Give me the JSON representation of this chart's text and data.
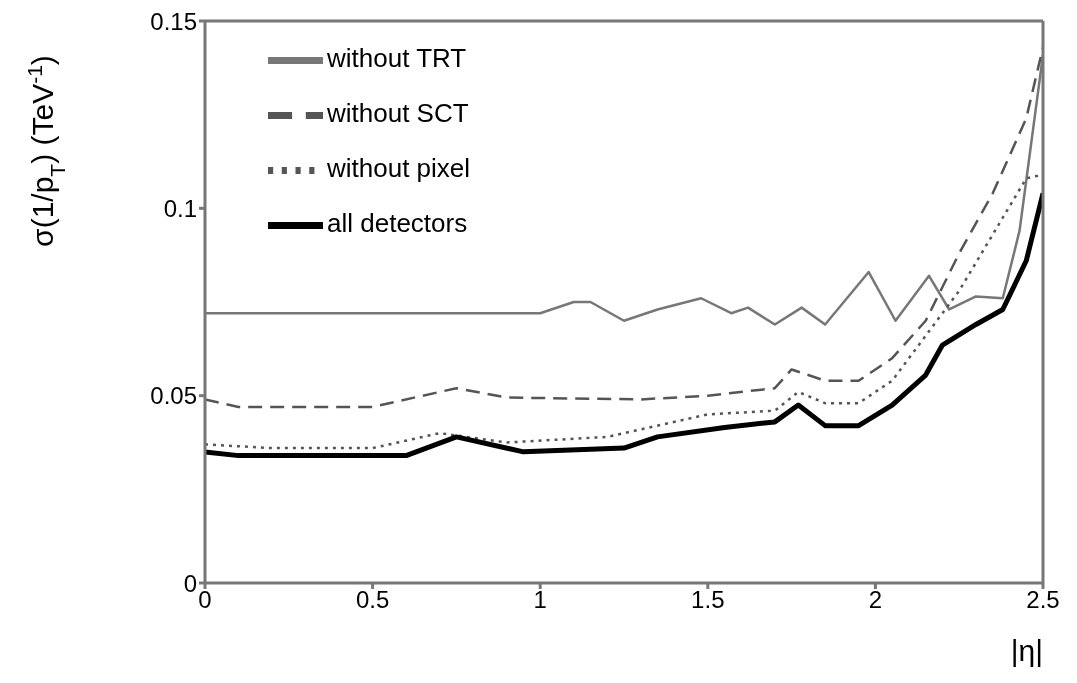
{
  "chart_data": {
    "type": "line",
    "xlabel": "|η|",
    "ylabel": "σ(1/p$_{T}$) (TeV$^{-1}$)",
    "xlim": [
      0,
      2.5
    ],
    "xticks": [
      0,
      0.5,
      1,
      1.5,
      2,
      2.5
    ],
    "ylim": [
      0,
      0.15
    ],
    "yticks": [
      0,
      0.05,
      0.1,
      0.15
    ],
    "grid": false,
    "legend": "top left",
    "marker": "none",
    "series": [
      {
        "name": "without TRT",
        "color": "#777777",
        "line_style": "solid",
        "x": [
          0,
          1.0,
          1.1,
          1.15,
          1.25,
          1.35,
          1.48,
          1.57,
          1.62,
          1.7,
          1.78,
          1.85,
          1.98,
          2.06,
          2.16,
          2.22,
          2.3,
          2.38,
          2.43,
          2.5
        ],
        "values": [
          0.072,
          0.072,
          0.075,
          0.075,
          0.07,
          0.073,
          0.076,
          0.072,
          0.0735,
          0.069,
          0.0735,
          0.069,
          0.083,
          0.07,
          0.082,
          0.073,
          0.0765,
          0.076,
          0.094,
          0.141
        ]
      },
      {
        "name": "without SCT",
        "color": "#555555",
        "line_style": "dashed",
        "x": [
          0,
          0.1,
          0.5,
          0.75,
          0.9,
          1.3,
          1.5,
          1.7,
          1.75,
          1.85,
          1.95,
          2.05,
          2.15,
          2.25,
          2.35,
          2.45,
          2.5
        ],
        "values": [
          0.049,
          0.047,
          0.047,
          0.052,
          0.0495,
          0.049,
          0.05,
          0.052,
          0.057,
          0.054,
          0.054,
          0.06,
          0.07,
          0.088,
          0.104,
          0.124,
          0.143
        ]
      },
      {
        "name": "without pixel",
        "color": "#555555",
        "line_style": "dotted",
        "x": [
          0,
          0.2,
          0.5,
          0.7,
          0.9,
          1.2,
          1.5,
          1.7,
          1.77,
          1.85,
          1.95,
          2.05,
          2.15,
          2.25,
          2.35,
          2.45,
          2.5
        ],
        "values": [
          0.037,
          0.036,
          0.036,
          0.04,
          0.0375,
          0.039,
          0.045,
          0.046,
          0.051,
          0.048,
          0.048,
          0.054,
          0.066,
          0.078,
          0.093,
          0.108,
          0.109
        ]
      },
      {
        "name": "all detectors",
        "color": "#000000",
        "line_style": "solid",
        "x": [
          0,
          0.1,
          0.6,
          0.75,
          0.95,
          1.25,
          1.35,
          1.55,
          1.7,
          1.77,
          1.85,
          1.95,
          2.05,
          2.15,
          2.2,
          2.3,
          2.38,
          2.45,
          2.5
        ],
        "values": [
          0.035,
          0.034,
          0.034,
          0.039,
          0.035,
          0.036,
          0.039,
          0.0415,
          0.043,
          0.0475,
          0.042,
          0.042,
          0.0475,
          0.0555,
          0.0635,
          0.069,
          0.073,
          0.086,
          0.104
        ]
      }
    ]
  }
}
